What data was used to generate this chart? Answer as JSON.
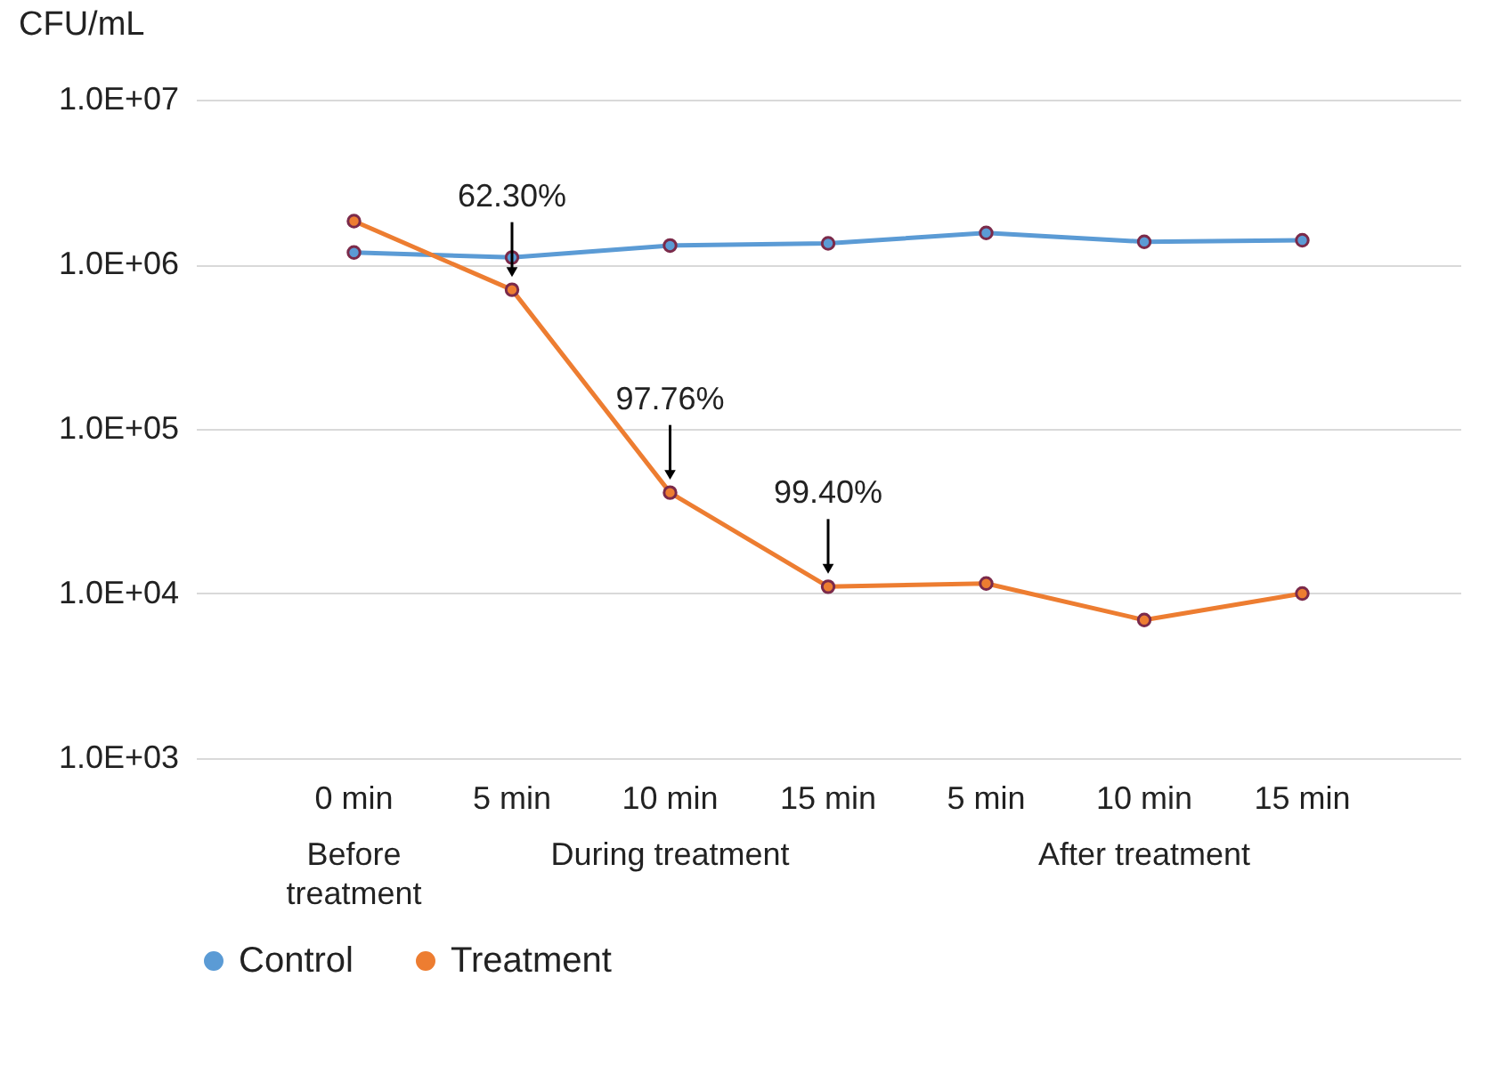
{
  "chart_data": {
    "type": "line",
    "ylabel": "CFU/mL",
    "categories": [
      "0 min",
      "5 min",
      "10 min",
      "15 min",
      "5 min",
      "10 min",
      "15 min"
    ],
    "series": [
      {
        "name": "Control",
        "color": "#5b9bd5",
        "values": [
          1180000,
          1100000,
          1300000,
          1340000,
          1550000,
          1370000,
          1400000
        ]
      },
      {
        "name": "Treatment",
        "color": "#ed7d31",
        "values": [
          1830000,
          700000,
          41000,
          11000,
          11500,
          6900,
          10000
        ]
      }
    ],
    "log": "y",
    "ylim": [
      1000,
      10000000
    ],
    "yticks": [
      {
        "value": 1000,
        "label": "1.0E+03"
      },
      {
        "value": 10000,
        "label": "1.0E+04"
      },
      {
        "value": 100000,
        "label": "1.0E+05"
      },
      {
        "value": 1000000,
        "label": "1.0E+06"
      },
      {
        "value": 10000000,
        "label": "1.0E+07"
      }
    ],
    "grid": "y",
    "legend": "bottom",
    "marker": "circle",
    "line_style": "solid",
    "annotations": [
      {
        "text": "62.30%",
        "x": "5 min",
        "y": 700000
      },
      {
        "text": "97.76%",
        "x": "10 min",
        "y": 41000
      },
      {
        "text": "99.40%",
        "x": "15 min",
        "y": 11000
      },
      "Before treatment",
      "During treatment",
      "After treatment"
    ]
  }
}
